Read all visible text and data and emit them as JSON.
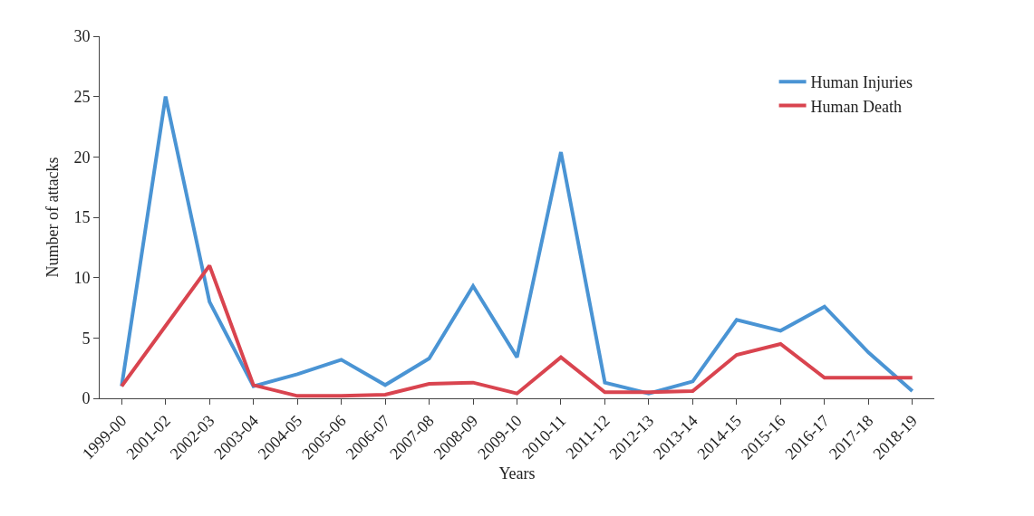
{
  "chart_data": {
    "type": "line",
    "xlabel": "Years",
    "ylabel": "Number of attacks",
    "categories": [
      "1999-00",
      "2001-02",
      "2002-03",
      "2003-04",
      "2004-05",
      "2005-06",
      "2006-07",
      "2007-08",
      "2008-09",
      "2009-10",
      "2010-11",
      "2011-12",
      "2012-13",
      "2013-14",
      "2014-15",
      "2015-16",
      "2016-17",
      "2017-18",
      "2018-19"
    ],
    "series": [
      {
        "name": "Human Injuries",
        "color": "#4a94d4",
        "values": [
          1,
          25,
          8,
          1,
          2,
          3.2,
          1.1,
          3.3,
          9.3,
          3.4,
          20.4,
          1.3,
          0.4,
          1.4,
          6.5,
          5.6,
          7.6,
          3.8,
          0.6
        ]
      },
      {
        "name": "Human Death",
        "color": "#d9444f",
        "values": [
          1,
          6,
          11,
          1.1,
          0.2,
          0.2,
          0.3,
          1.2,
          1.3,
          0.4,
          3.4,
          0.5,
          0.5,
          0.6,
          3.6,
          4.5,
          1.7,
          1.7,
          1.7
        ]
      }
    ],
    "ylim": [
      0,
      30
    ],
    "yticks": [
      0,
      5,
      10,
      15,
      20,
      25,
      30
    ],
    "grid": false,
    "legend": "top right",
    "marker": "none",
    "line_style": "solid"
  }
}
